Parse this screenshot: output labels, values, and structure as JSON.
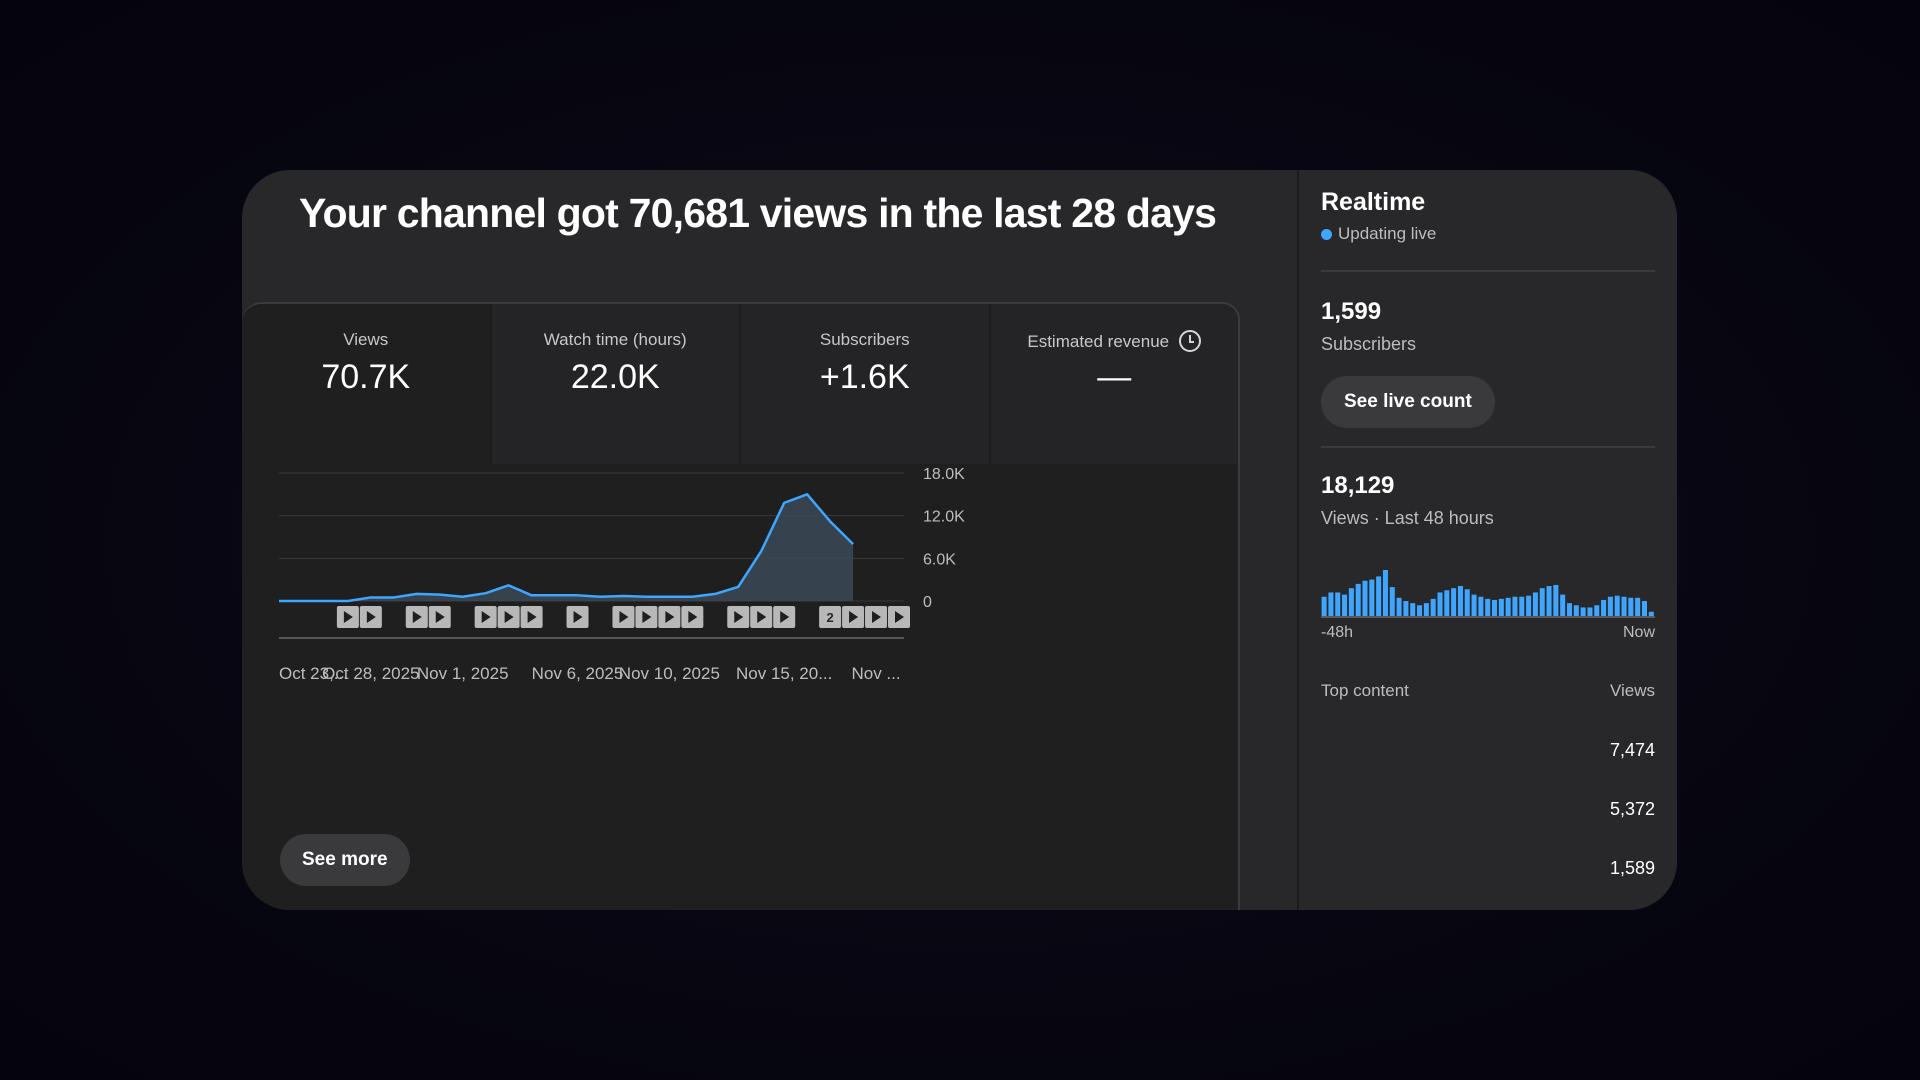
{
  "headline": "Your channel got 70,681 views in the last 28 days",
  "metrics": [
    {
      "label": "Views",
      "value": "70.7K"
    },
    {
      "label": "Watch time (hours)",
      "value": "22.0K"
    },
    {
      "label": "Subscribers",
      "value": "+1.6K"
    },
    {
      "label": "Estimated revenue",
      "value": "—",
      "icon": "clock-icon"
    }
  ],
  "chart_data": {
    "type": "area",
    "title": "",
    "xlabel": "",
    "ylabel": "",
    "ylim": [
      0,
      18000
    ],
    "y_ticks": [
      "18.0K",
      "12.0K",
      "6.0K",
      "0"
    ],
    "y_tick_values": [
      18000,
      12000,
      6000,
      0
    ],
    "x_tick_labels": [
      "Oct 23,...",
      "Oct 28, 2025",
      "Nov 1, 2025",
      "Nov 6, 2025",
      "Nov 10, 2025",
      "Nov 15, 20...",
      "Nov ..."
    ],
    "x_tick_days": [
      0,
      4,
      8,
      13,
      17,
      22,
      26
    ],
    "num_days": 28,
    "color": "#3ea6ff",
    "fill": "#3b4a57",
    "grid": true,
    "series": [
      {
        "values": [
          0,
          0,
          0,
          0,
          500,
          500,
          1000,
          900,
          600,
          1100,
          2200,
          800,
          800,
          800,
          600,
          700,
          600,
          600,
          600,
          1000,
          2000,
          7000,
          13800,
          15000,
          11200,
          8000
        ]
      }
    ],
    "video_markers": [
      {
        "day": 3,
        "label": ""
      },
      {
        "day": 4,
        "label": ""
      },
      {
        "day": 6,
        "label": ""
      },
      {
        "day": 7,
        "label": ""
      },
      {
        "day": 9,
        "label": ""
      },
      {
        "day": 10,
        "label": ""
      },
      {
        "day": 11,
        "label": ""
      },
      {
        "day": 13,
        "label": ""
      },
      {
        "day": 15,
        "label": ""
      },
      {
        "day": 16,
        "label": ""
      },
      {
        "day": 17,
        "label": ""
      },
      {
        "day": 18,
        "label": ""
      },
      {
        "day": 20,
        "label": ""
      },
      {
        "day": 21,
        "label": ""
      },
      {
        "day": 22,
        "label": ""
      },
      {
        "day": 24,
        "label": "2"
      },
      {
        "day": 25,
        "label": ""
      },
      {
        "day": 26,
        "label": ""
      },
      {
        "day": 27,
        "label": ""
      }
    ]
  },
  "see_more_label": "See more",
  "realtime": {
    "title": "Realtime",
    "live_label": "Updating live",
    "subscribers_value": "1,599",
    "subscribers_label": "Subscribers",
    "live_count_button": "See live count",
    "views_value": "18,129",
    "views_label": "Views · Last 48 hours",
    "spark_start": "-48h",
    "spark_end": "Now",
    "spark_color": "#3ea6ff",
    "spark_values": [
      18,
      22,
      22,
      20,
      26,
      30,
      33,
      34,
      37,
      43,
      27,
      17,
      14,
      12,
      10,
      12,
      16,
      22,
      24,
      26,
      28,
      25,
      20,
      18,
      16,
      15,
      16,
      17,
      18,
      18,
      19,
      22,
      26,
      28,
      29,
      20,
      12,
      10,
      8,
      8,
      10,
      15,
      18,
      19,
      18,
      17,
      17,
      14,
      4
    ],
    "top_content_label": "Top content",
    "views_col_label": "Views",
    "top_content": [
      {
        "views": "7,474"
      },
      {
        "views": "5,372"
      },
      {
        "views": "1,589"
      }
    ]
  }
}
